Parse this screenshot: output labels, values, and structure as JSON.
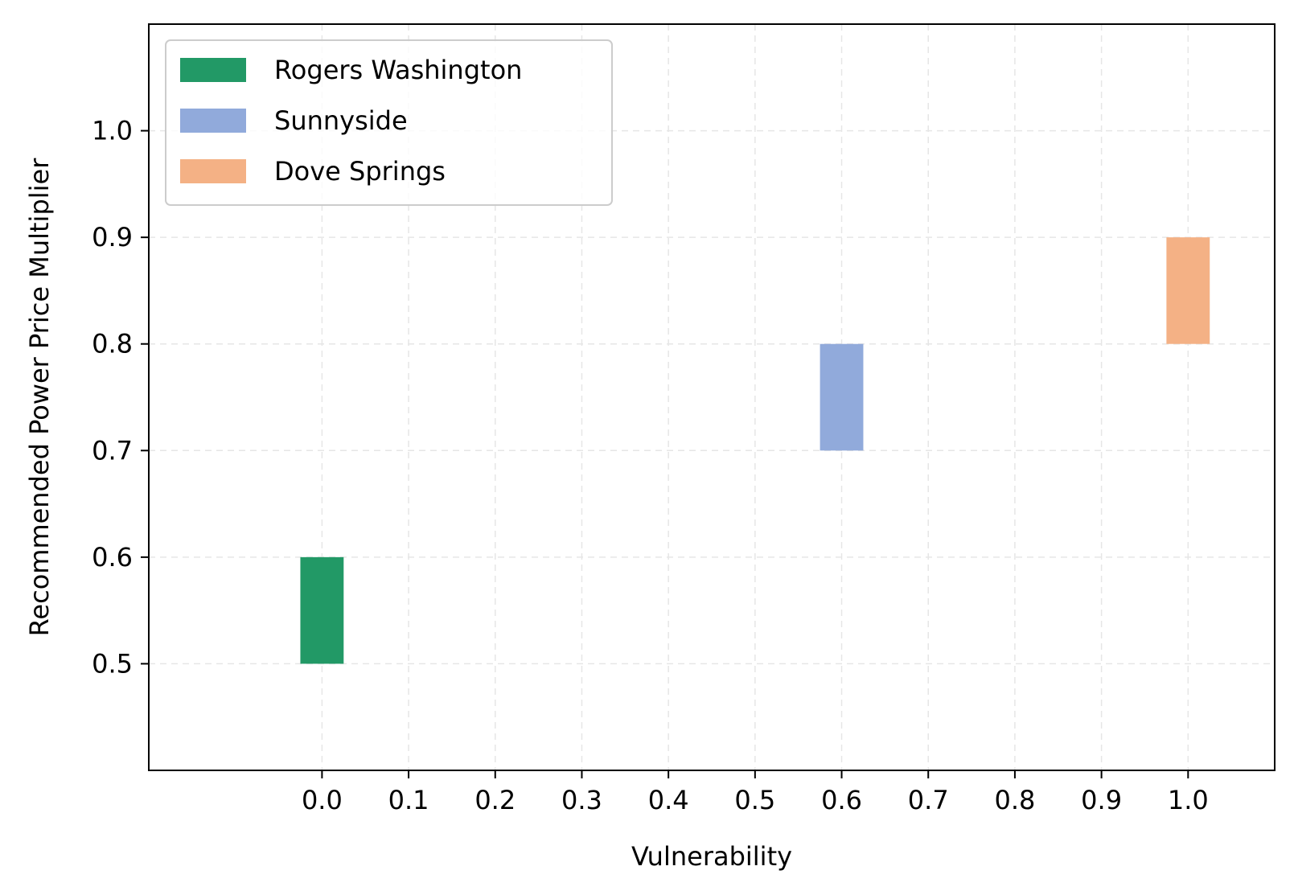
{
  "chart_data": {
    "type": "bar",
    "title": "",
    "xlabel": "Vulnerability",
    "ylabel": "Recommended Power Price Multiplier",
    "xlim": [
      -0.2,
      1.1
    ],
    "ylim": [
      0.4,
      1.1
    ],
    "xticks": [
      0.0,
      0.1,
      0.2,
      0.3,
      0.4,
      0.5,
      0.6,
      0.7,
      0.8,
      0.9,
      1.0
    ],
    "xtick_labels": [
      "0.0",
      "0.1",
      "0.2",
      "0.3",
      "0.4",
      "0.5",
      "0.6",
      "0.7",
      "0.8",
      "0.9",
      "1.0"
    ],
    "yticks": [
      0.5,
      0.6,
      0.7,
      0.8,
      0.9,
      1.0
    ],
    "ytick_labels": [
      "0.5",
      "0.6",
      "0.7",
      "0.8",
      "0.9",
      "1.0"
    ],
    "bar_width": 0.05,
    "grid": true,
    "legend_position": "top-left",
    "series": [
      {
        "name": "Rogers Washington",
        "x": 0.0,
        "y_low": 0.5,
        "y_high": 0.6,
        "color": "#229966"
      },
      {
        "name": "Sunnyside",
        "x": 0.6,
        "y_low": 0.7,
        "y_high": 0.8,
        "color": "#91aadb"
      },
      {
        "name": "Dove Springs",
        "x": 1.0,
        "y_low": 0.8,
        "y_high": 0.9,
        "color": "#f4b185"
      }
    ]
  }
}
